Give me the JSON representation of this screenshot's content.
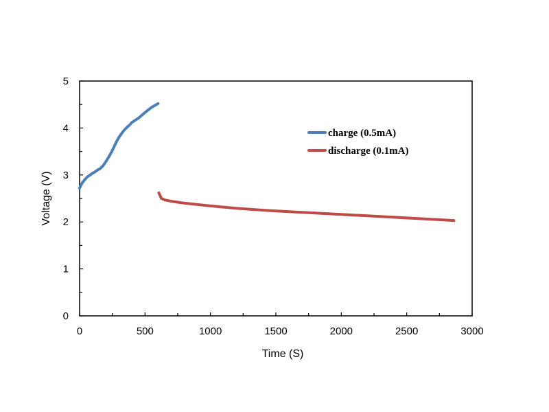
{
  "chart_data": {
    "type": "line",
    "title": "",
    "xlabel": "Time (S)",
    "ylabel": "Voltage (V)",
    "xlim": [
      0,
      3000
    ],
    "ylim": [
      0,
      5
    ],
    "x_ticks": [
      0,
      500,
      1000,
      1500,
      2000,
      2500,
      3000
    ],
    "y_ticks": [
      0,
      1,
      2,
      3,
      4,
      5
    ],
    "grid": false,
    "legend_position": "top-right",
    "series": [
      {
        "name": "charge (0.5mA)",
        "color": "#4a7ebb",
        "x": [
          0,
          10,
          20,
          40,
          60,
          80,
          100,
          120,
          140,
          160,
          180,
          200,
          220,
          240,
          260,
          280,
          300,
          320,
          340,
          360,
          380,
          400,
          450,
          500,
          550,
          600
        ],
        "y": [
          2.72,
          2.78,
          2.83,
          2.9,
          2.96,
          3.0,
          3.04,
          3.07,
          3.11,
          3.14,
          3.2,
          3.28,
          3.37,
          3.47,
          3.58,
          3.7,
          3.8,
          3.88,
          3.95,
          4.01,
          4.06,
          4.12,
          4.21,
          4.33,
          4.44,
          4.52
        ]
      },
      {
        "name": "discharge (0.1mA)",
        "color": "#be4b48",
        "x": [
          605,
          615,
          625,
          650,
          700,
          750,
          800,
          900,
          1000,
          1200,
          1400,
          1600,
          1800,
          2000,
          2200,
          2400,
          2600,
          2800,
          2860
        ],
        "y": [
          2.62,
          2.56,
          2.5,
          2.47,
          2.44,
          2.42,
          2.4,
          2.37,
          2.34,
          2.29,
          2.25,
          2.22,
          2.19,
          2.16,
          2.13,
          2.1,
          2.07,
          2.04,
          2.03
        ]
      }
    ]
  }
}
